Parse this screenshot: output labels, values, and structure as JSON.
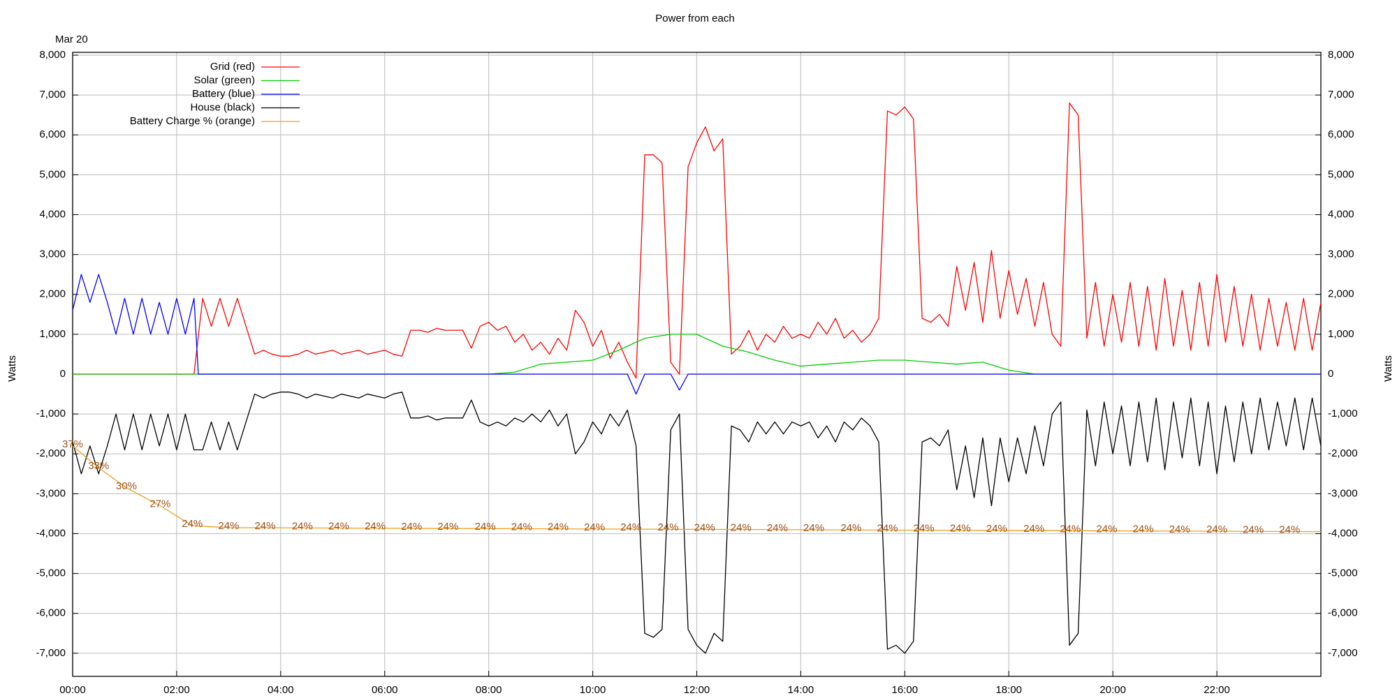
{
  "chart_data": {
    "type": "line",
    "title": "Power from each",
    "date_label": "Mar 20",
    "ylabel": "Watts",
    "y2label": "Watts",
    "xlim": [
      0,
      1440
    ],
    "xticks": [
      {
        "value": 0,
        "label": "00:00"
      },
      {
        "value": 120,
        "label": "02:00"
      },
      {
        "value": 240,
        "label": "04:00"
      },
      {
        "value": 360,
        "label": "06:00"
      },
      {
        "value": 480,
        "label": "08:00"
      },
      {
        "value": 600,
        "label": "10:00"
      },
      {
        "value": 720,
        "label": "12:00"
      },
      {
        "value": 840,
        "label": "14:00"
      },
      {
        "value": 960,
        "label": "16:00"
      },
      {
        "value": 1080,
        "label": "18:00"
      },
      {
        "value": 1200,
        "label": "20:00"
      },
      {
        "value": 1320,
        "label": "22:00"
      }
    ],
    "ylim": [
      -7580,
      8070
    ],
    "yticks": [
      {
        "value": -7000,
        "label": "-7,000"
      },
      {
        "value": -6000,
        "label": "-6,000"
      },
      {
        "value": -5000,
        "label": "-5,000"
      },
      {
        "value": -4000,
        "label": "-4,000"
      },
      {
        "value": -3000,
        "label": "-3,000"
      },
      {
        "value": -2000,
        "label": "-2,000"
      },
      {
        "value": -1000,
        "label": "-1,000"
      },
      0,
      {
        "value": 1000,
        "label": "1,000"
      },
      {
        "value": 2000,
        "label": "2,000"
      },
      {
        "value": 3000,
        "label": "3,000"
      },
      {
        "value": 4000,
        "label": "4,000"
      },
      {
        "value": 5000,
        "label": "5,000"
      },
      {
        "value": 6000,
        "label": "6,000"
      },
      {
        "value": 7000,
        "label": "7,000"
      },
      {
        "value": 8000,
        "label": "8,000"
      }
    ],
    "y2lim": [
      -7580,
      8070
    ],
    "y2ticks": [
      {
        "value": -7000,
        "label": "-7,000"
      },
      {
        "value": -6000,
        "label": "-6,000"
      },
      {
        "value": -5000,
        "label": "-5,000"
      },
      {
        "value": -4000,
        "label": "-4,000"
      },
      {
        "value": -3000,
        "label": "-3,000"
      },
      {
        "value": -2000,
        "label": "-2,000"
      },
      {
        "value": -1000,
        "label": "-1,000"
      },
      0,
      {
        "value": 1000,
        "label": "1,000"
      },
      {
        "value": 2000,
        "label": "2,000"
      },
      {
        "value": 3000,
        "label": "3,000"
      },
      {
        "value": 4000,
        "label": "4,000"
      },
      {
        "value": 5000,
        "label": "5,000"
      },
      {
        "value": 6000,
        "label": "6,000"
      },
      {
        "value": 7000,
        "label": "7,000"
      },
      {
        "value": 8000,
        "label": "8,000"
      }
    ],
    "grid": true,
    "legend": "upper-left",
    "series": [
      {
        "name": "Grid (red)",
        "color": "#ff0000",
        "x": [
          0,
          10,
          20,
          30,
          40,
          50,
          60,
          70,
          80,
          90,
          100,
          110,
          120,
          130,
          140,
          150,
          160,
          170,
          180,
          190,
          200,
          210,
          220,
          230,
          240,
          250,
          260,
          270,
          280,
          290,
          300,
          310,
          320,
          330,
          340,
          350,
          360,
          370,
          380,
          390,
          400,
          410,
          420,
          430,
          440,
          450,
          460,
          470,
          480,
          490,
          500,
          510,
          520,
          530,
          540,
          550,
          560,
          570,
          580,
          590,
          600,
          610,
          620,
          630,
          640,
          650,
          660,
          670,
          680,
          690,
          700,
          710,
          720,
          730,
          740,
          750,
          760,
          770,
          780,
          790,
          800,
          810,
          820,
          830,
          840,
          850,
          860,
          870,
          880,
          890,
          900,
          910,
          920,
          930,
          940,
          950,
          960,
          970,
          980,
          990,
          1000,
          1010,
          1020,
          1030,
          1040,
          1050,
          1060,
          1070,
          1080,
          1090,
          1100,
          1110,
          1120,
          1130,
          1140,
          1150,
          1160,
          1170,
          1180,
          1190,
          1200,
          1210,
          1220,
          1230,
          1240,
          1250,
          1260,
          1270,
          1280,
          1290,
          1300,
          1310,
          1320,
          1330,
          1340,
          1350,
          1360,
          1370,
          1380,
          1390,
          1400,
          1410,
          1420,
          1430,
          1440
        ],
        "values": [
          0,
          0,
          0,
          0,
          0,
          0,
          0,
          0,
          0,
          0,
          0,
          0,
          0,
          0,
          0,
          1900,
          1200,
          1900,
          1200,
          1900,
          1200,
          500,
          600,
          500,
          450,
          450,
          500,
          600,
          500,
          550,
          600,
          500,
          550,
          600,
          500,
          550,
          600,
          500,
          450,
          1100,
          1100,
          1050,
          1150,
          1100,
          1100,
          1100,
          650,
          1200,
          1300,
          1100,
          1200,
          800,
          1000,
          600,
          800,
          500,
          900,
          600,
          1600,
          1300,
          700,
          1100,
          400,
          800,
          300,
          -100,
          5500,
          5500,
          5300,
          300,
          0,
          5200,
          5800,
          6200,
          5600,
          5900,
          500,
          700,
          1100,
          600,
          1000,
          800,
          1200,
          900,
          1000,
          900,
          1300,
          1000,
          1400,
          900,
          1100,
          800,
          1000,
          1400,
          6600,
          6500,
          6700,
          6400,
          1400,
          1300,
          1500,
          1200,
          2700,
          1600,
          2800,
          1300,
          3100,
          1400,
          2600,
          1500,
          2400,
          1200,
          2300,
          1000,
          700,
          6800,
          6500,
          900,
          2300,
          700,
          2000,
          800,
          2300,
          700,
          2200,
          600,
          2400,
          700,
          2100,
          600,
          2300,
          700,
          2500,
          800,
          2200,
          700,
          2000,
          600,
          1900,
          700,
          1800,
          600,
          1900,
          600,
          1800
        ]
      },
      {
        "name": "Solar (green)",
        "color": "#00cc00",
        "x": [
          0,
          30,
          60,
          90,
          120,
          150,
          180,
          210,
          240,
          270,
          300,
          330,
          360,
          390,
          420,
          450,
          480,
          510,
          540,
          570,
          600,
          630,
          660,
          690,
          720,
          750,
          780,
          810,
          840,
          870,
          900,
          930,
          960,
          990,
          1020,
          1050,
          1080,
          1110,
          1140,
          1170,
          1200,
          1230,
          1260,
          1290,
          1320,
          1350,
          1380,
          1410,
          1440
        ],
        "values": [
          0,
          0,
          0,
          0,
          0,
          0,
          0,
          0,
          0,
          0,
          0,
          0,
          0,
          0,
          0,
          0,
          0,
          50,
          250,
          300,
          350,
          600,
          900,
          1000,
          1000,
          700,
          550,
          350,
          200,
          250,
          300,
          350,
          350,
          300,
          250,
          300,
          100,
          0,
          0,
          0,
          0,
          0,
          0,
          0,
          0,
          0,
          0,
          0,
          0
        ]
      },
      {
        "name": "Battery (blue)",
        "color": "#0000ff",
        "x": [
          0,
          10,
          20,
          30,
          40,
          50,
          60,
          70,
          80,
          90,
          100,
          110,
          120,
          130,
          140,
          145,
          640,
          650,
          660,
          690,
          700,
          710,
          1440
        ],
        "values": [
          1600,
          2500,
          1800,
          2500,
          1800,
          1000,
          1900,
          1000,
          1900,
          1000,
          1800,
          1000,
          1900,
          1000,
          1900,
          0,
          0,
          -500,
          0,
          0,
          -400,
          0,
          0
        ]
      },
      {
        "name": "House (black)",
        "color": "#000000",
        "x": [
          0,
          10,
          20,
          30,
          40,
          50,
          60,
          70,
          80,
          90,
          100,
          110,
          120,
          130,
          140,
          150,
          160,
          170,
          180,
          190,
          200,
          210,
          220,
          230,
          240,
          250,
          260,
          270,
          280,
          290,
          300,
          310,
          320,
          330,
          340,
          350,
          360,
          370,
          380,
          390,
          400,
          410,
          420,
          430,
          440,
          450,
          460,
          470,
          480,
          490,
          500,
          510,
          520,
          530,
          540,
          550,
          560,
          570,
          580,
          590,
          600,
          610,
          620,
          630,
          640,
          650,
          660,
          670,
          680,
          690,
          700,
          710,
          720,
          730,
          740,
          750,
          760,
          770,
          780,
          790,
          800,
          810,
          820,
          830,
          840,
          850,
          860,
          870,
          880,
          890,
          900,
          910,
          920,
          930,
          940,
          950,
          960,
          970,
          980,
          990,
          1000,
          1010,
          1020,
          1030,
          1040,
          1050,
          1060,
          1070,
          1080,
          1090,
          1100,
          1110,
          1120,
          1130,
          1140,
          1150,
          1160,
          1170,
          1180,
          1190,
          1200,
          1210,
          1220,
          1230,
          1240,
          1250,
          1260,
          1270,
          1280,
          1290,
          1300,
          1310,
          1320,
          1330,
          1340,
          1350,
          1360,
          1370,
          1380,
          1390,
          1400,
          1410,
          1420,
          1430,
          1440
        ],
        "values": [
          -1700,
          -2500,
          -1800,
          -2500,
          -1800,
          -1000,
          -1900,
          -1000,
          -1900,
          -1000,
          -1800,
          -1000,
          -1900,
          -1000,
          -1900,
          -1900,
          -1200,
          -1900,
          -1200,
          -1900,
          -1200,
          -500,
          -600,
          -500,
          -450,
          -450,
          -500,
          -600,
          -500,
          -550,
          -600,
          -500,
          -550,
          -600,
          -500,
          -550,
          -600,
          -500,
          -450,
          -1100,
          -1100,
          -1050,
          -1150,
          -1100,
          -1100,
          -1100,
          -650,
          -1200,
          -1300,
          -1200,
          -1300,
          -1100,
          -1200,
          -1000,
          -1200,
          -900,
          -1300,
          -1000,
          -2000,
          -1700,
          -1200,
          -1500,
          -1000,
          -1300,
          -900,
          -1800,
          -6500,
          -6600,
          -6400,
          -1400,
          -1000,
          -6400,
          -6800,
          -7000,
          -6500,
          -6700,
          -1300,
          -1400,
          -1700,
          -1200,
          -1500,
          -1200,
          -1500,
          -1200,
          -1300,
          -1200,
          -1600,
          -1300,
          -1700,
          -1200,
          -1400,
          -1100,
          -1300,
          -1700,
          -6900,
          -6800,
          -7000,
          -6700,
          -1700,
          -1600,
          -1800,
          -1400,
          -2900,
          -1800,
          -3100,
          -1600,
          -3300,
          -1600,
          -2700,
          -1600,
          -2500,
          -1300,
          -2300,
          -1000,
          -700,
          -6800,
          -6500,
          -900,
          -2300,
          -700,
          -2000,
          -800,
          -2300,
          -700,
          -2200,
          -600,
          -2400,
          -700,
          -2100,
          -600,
          -2300,
          -700,
          -2500,
          -800,
          -2200,
          -700,
          -2000,
          -600,
          -1900,
          -700,
          -1800,
          -600,
          -1900,
          -600,
          -1800
        ]
      },
      {
        "name": "Battery Charge % (orange)",
        "color": "#f0a020",
        "x": [
          0,
          30,
          62,
          101,
          138,
          180,
          1440
        ],
        "values": [
          -1800,
          -2350,
          -2850,
          -3300,
          -3800,
          -3850,
          -3950
        ]
      }
    ],
    "annotations": [
      {
        "x": 0,
        "text": "37%"
      },
      {
        "x": 30,
        "text": "33%"
      },
      {
        "x": 62,
        "text": "30%"
      },
      {
        "x": 101,
        "text": "27%"
      },
      {
        "x": 138,
        "text": "24%"
      },
      {
        "x": 180,
        "text": "24%"
      },
      {
        "x": 222,
        "text": "24%"
      },
      {
        "x": 265,
        "text": "24%"
      },
      {
        "x": 307,
        "text": "24%"
      },
      {
        "x": 349,
        "text": "24%"
      },
      {
        "x": 391,
        "text": "24%"
      },
      {
        "x": 433,
        "text": "24%"
      },
      {
        "x": 476,
        "text": "24%"
      },
      {
        "x": 518,
        "text": "24%"
      },
      {
        "x": 560,
        "text": "24%"
      },
      {
        "x": 602,
        "text": "24%"
      },
      {
        "x": 644,
        "text": "24%"
      },
      {
        "x": 687,
        "text": "24%"
      },
      {
        "x": 729,
        "text": "24%"
      },
      {
        "x": 771,
        "text": "24%"
      },
      {
        "x": 813,
        "text": "24%"
      },
      {
        "x": 855,
        "text": "24%"
      },
      {
        "x": 898,
        "text": "24%"
      },
      {
        "x": 940,
        "text": "24%"
      },
      {
        "x": 982,
        "text": "24%"
      },
      {
        "x": 1024,
        "text": "24%"
      },
      {
        "x": 1066,
        "text": "24%"
      },
      {
        "x": 1109,
        "text": "24%"
      },
      {
        "x": 1151,
        "text": "24%"
      },
      {
        "x": 1193,
        "text": "24%"
      },
      {
        "x": 1235,
        "text": "24%"
      },
      {
        "x": 1277,
        "text": "24%"
      },
      {
        "x": 1320,
        "text": "24%"
      },
      {
        "x": 1362,
        "text": "24%"
      },
      {
        "x": 1404,
        "text": "24%"
      }
    ]
  }
}
